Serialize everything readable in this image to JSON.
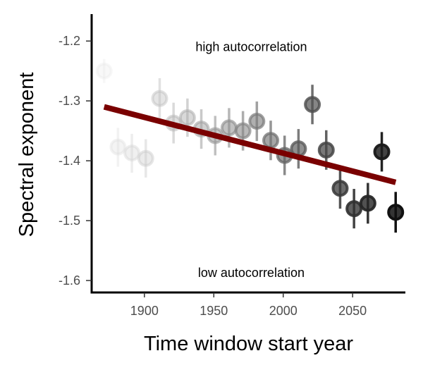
{
  "chart_data": {
    "type": "scatter",
    "title": "",
    "xlabel": "Time window start year",
    "ylabel": "Spectral exponent",
    "xlim": [
      1862,
      2088
    ],
    "ylim": [
      -1.62,
      -1.155
    ],
    "x_ticks": [
      1900,
      1950,
      2000,
      2050
    ],
    "x_tick_labels": [
      "1900",
      "1950",
      "2000",
      "2050"
    ],
    "y_ticks": [
      -1.2,
      -1.3,
      -1.4,
      -1.5,
      -1.6
    ],
    "y_tick_labels": [
      "-1.2",
      "-1.3",
      "-1.4",
      "-1.5",
      "-1.6"
    ],
    "grid": false,
    "legend": "none",
    "point_color_scale": [
      "#e8e8e8",
      "#111111"
    ],
    "trend_line_color": "#7a0000",
    "annotations": [
      {
        "text": "high autocorrelation",
        "x": 1977,
        "y": -1.21
      },
      {
        "text": "low autocorrelation",
        "x": 1977,
        "y": -1.587
      }
    ],
    "points": [
      {
        "x": 1871,
        "y": -1.25,
        "ylow": -1.27,
        "yhigh": -1.23
      },
      {
        "x": 1881,
        "y": -1.377,
        "ylow": -1.41,
        "yhigh": -1.345
      },
      {
        "x": 1891,
        "y": -1.387,
        "ylow": -1.42,
        "yhigh": -1.355
      },
      {
        "x": 1901,
        "y": -1.396,
        "ylow": -1.428,
        "yhigh": -1.364
      },
      {
        "x": 1911,
        "y": -1.296,
        "ylow": -1.33,
        "yhigh": -1.262
      },
      {
        "x": 1921,
        "y": -1.337,
        "ylow": -1.371,
        "yhigh": -1.303
      },
      {
        "x": 1931,
        "y": -1.328,
        "ylow": -1.36,
        "yhigh": -1.296
      },
      {
        "x": 1941,
        "y": -1.347,
        "ylow": -1.38,
        "yhigh": -1.314
      },
      {
        "x": 1951,
        "y": -1.358,
        "ylow": -1.391,
        "yhigh": -1.325
      },
      {
        "x": 1961,
        "y": -1.345,
        "ylow": -1.378,
        "yhigh": -1.312
      },
      {
        "x": 1971,
        "y": -1.35,
        "ylow": -1.383,
        "yhigh": -1.317
      },
      {
        "x": 1981,
        "y": -1.334,
        "ylow": -1.367,
        "yhigh": -1.301
      },
      {
        "x": 1991,
        "y": -1.366,
        "ylow": -1.399,
        "yhigh": -1.333
      },
      {
        "x": 2001,
        "y": -1.391,
        "ylow": -1.424,
        "yhigh": -1.358
      },
      {
        "x": 2011,
        "y": -1.38,
        "ylow": -1.413,
        "yhigh": -1.347
      },
      {
        "x": 2021,
        "y": -1.306,
        "ylow": -1.339,
        "yhigh": -1.273
      },
      {
        "x": 2031,
        "y": -1.382,
        "ylow": -1.415,
        "yhigh": -1.349
      },
      {
        "x": 2041,
        "y": -1.446,
        "ylow": -1.48,
        "yhigh": -1.412
      },
      {
        "x": 2051,
        "y": -1.48,
        "ylow": -1.513,
        "yhigh": -1.447
      },
      {
        "x": 2061,
        "y": -1.471,
        "ylow": -1.505,
        "yhigh": -1.437
      },
      {
        "x": 2071,
        "y": -1.385,
        "ylow": -1.418,
        "yhigh": -1.352
      },
      {
        "x": 2081,
        "y": -1.486,
        "ylow": -1.52,
        "yhigh": -1.452
      }
    ],
    "trend_line": {
      "x": [
        1871,
        2081
      ],
      "y": [
        -1.31,
        -1.436
      ]
    }
  }
}
